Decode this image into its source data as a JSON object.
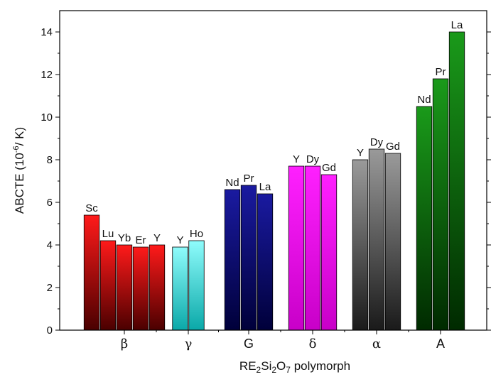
{
  "chart_data": {
    "type": "bar",
    "xlabel": {
      "prefix": "RE",
      "sub1": "2",
      "mid": "Si",
      "sub2": "2",
      "tail": "O",
      "sub3": "7",
      "rest": " polymorph"
    },
    "ylabel": {
      "prefix": "ABCTE (10",
      "sup": "-6",
      "rest": "/ K)"
    },
    "ylim": [
      0,
      15
    ],
    "yticks": [
      "0",
      "2",
      "4",
      "6",
      "8",
      "10",
      "12",
      "14"
    ],
    "grid": false,
    "groups": [
      {
        "name": "β",
        "bars": [
          {
            "label": "Sc",
            "value": 5.4
          },
          {
            "label": "Lu",
            "value": 4.2
          },
          {
            "label": "Yb",
            "value": 4.0
          },
          {
            "label": "Er",
            "value": 3.9
          },
          {
            "label": "Y",
            "value": 4.0
          }
        ],
        "color_top": "#ff1a1a",
        "color_bottom": "#4a0000"
      },
      {
        "name": "γ",
        "bars": [
          {
            "label": "Y",
            "value": 3.9
          },
          {
            "label": "Ho",
            "value": 4.2
          }
        ],
        "color_top": "#8ffcfc",
        "color_bottom": "#0aa8a8"
      },
      {
        "name": "G",
        "bars": [
          {
            "label": "Nd",
            "value": 6.6
          },
          {
            "label": "Pr",
            "value": 6.8
          },
          {
            "label": "La",
            "value": 6.4
          }
        ],
        "color_top": "#1a1aa0",
        "color_bottom": "#00003a"
      },
      {
        "name": "δ",
        "bars": [
          {
            "label": "Y",
            "value": 7.7
          },
          {
            "label": "Dy",
            "value": 7.7
          },
          {
            "label": "Gd",
            "value": 7.3
          }
        ],
        "color_top": "#ff20ff",
        "color_bottom": "#c800c8"
      },
      {
        "name": "α",
        "bars": [
          {
            "label": "Y",
            "value": 8.0
          },
          {
            "label": "Dy",
            "value": 8.5
          },
          {
            "label": "Gd",
            "value": 8.3
          }
        ],
        "color_top": "#9a9a9a",
        "color_bottom": "#1a1a1a"
      },
      {
        "name": "A",
        "bars": [
          {
            "label": "Nd",
            "value": 10.5
          },
          {
            "label": "Pr",
            "value": 11.8
          },
          {
            "label": "La",
            "value": 14.0
          }
        ],
        "color_top": "#1a9a1a",
        "color_bottom": "#002a00"
      }
    ]
  }
}
